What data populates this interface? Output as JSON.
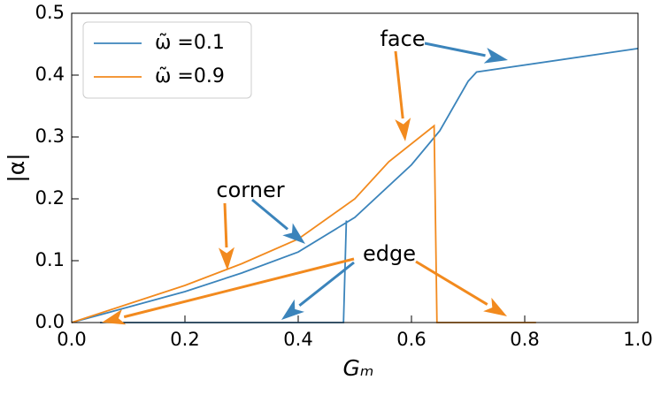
{
  "chart_data": {
    "type": "line",
    "xlabel": "Gₘ",
    "ylabel": "|α|",
    "xlim": [
      0,
      1
    ],
    "ylim": [
      0,
      0.5
    ],
    "xticks": [
      {
        "value": 0,
        "label": "0.0"
      },
      0.2,
      0.4,
      0.6,
      0.8,
      {
        "value": 1,
        "label": "1.0"
      }
    ],
    "yticks": [
      {
        "value": 0,
        "label": "0.0"
      },
      0.1,
      0.2,
      0.3,
      0.4,
      0.5
    ],
    "legend": "upper left",
    "series": [
      {
        "name": "ω̃ =0.1",
        "color": "#3b84bb",
        "x": [
          0,
          0.1,
          0.2,
          0.3,
          0.4,
          0.5,
          0.6,
          0.65,
          0.7,
          0.715,
          1.0,
          null,
          0.05,
          0.48,
          0.485
        ],
        "values": [
          0,
          0.025,
          0.05,
          0.08,
          0.114,
          0.17,
          0.255,
          0.31,
          0.39,
          0.405,
          0.443,
          null,
          0,
          0,
          0.165
        ]
      },
      {
        "name": "ω̃ =0.9",
        "color": "#f28a1e",
        "x": [
          0,
          0.1,
          0.2,
          0.3,
          0.4,
          0.5,
          0.56,
          0.64,
          0.645,
          0.82
        ],
        "values": [
          0,
          0.03,
          0.06,
          0.095,
          0.135,
          0.2,
          0.26,
          0.318,
          0,
          0
        ]
      }
    ],
    "annotations": [
      "face",
      "corner",
      "edge"
    ]
  }
}
